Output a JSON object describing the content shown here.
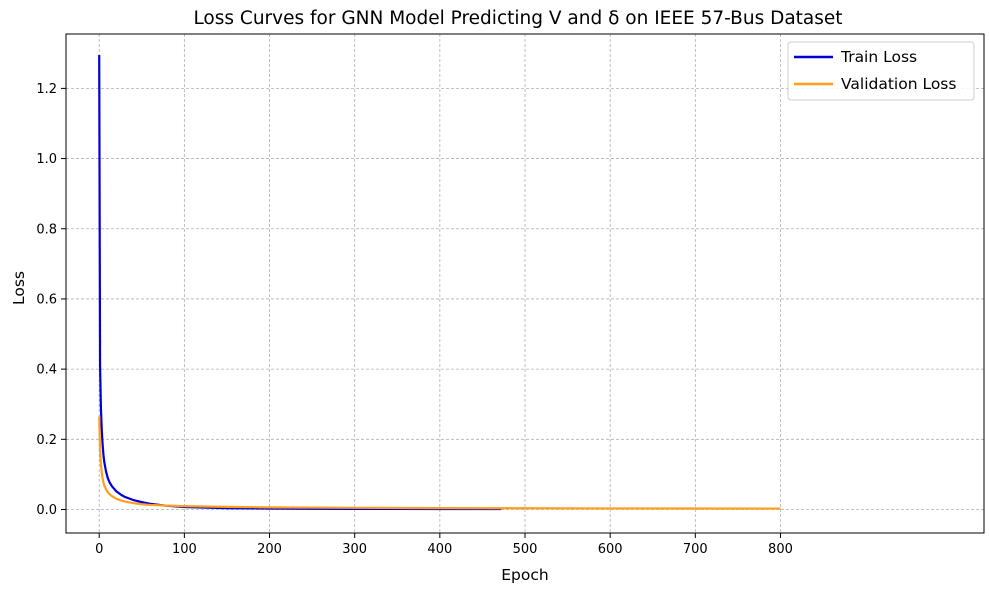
{
  "chart_data": {
    "type": "line",
    "title": "Loss Curves for GNN Model Predicting V and δ on IEEE 57-Bus Dataset",
    "xlabel": "Epoch",
    "ylabel": "Loss",
    "xlim": [
      -39,
      1039
    ],
    "ylim": [
      -0.067,
      1.355
    ],
    "xticks": [
      0,
      100,
      200,
      300,
      400,
      500,
      600,
      700,
      800
    ],
    "yticks": [
      0.0,
      0.2,
      0.4,
      0.6,
      0.8,
      1.0,
      1.2
    ],
    "xtick_labels": [
      "0",
      "100",
      "200",
      "300",
      "400",
      "500",
      "600",
      "700",
      "800"
    ],
    "ytick_labels": [
      "0.0",
      "0.2",
      "0.4",
      "0.6",
      "0.8",
      "1.0",
      "1.2"
    ],
    "grid": true,
    "legend_position": "top-right",
    "series": [
      {
        "name": "Train Loss",
        "color": "#0000dd",
        "x": [
          0,
          1,
          2,
          3,
          4,
          5,
          6,
          8,
          10,
          12,
          15,
          20,
          25,
          30,
          40,
          50,
          60,
          80,
          100,
          150,
          200,
          250,
          300,
          350,
          400,
          450,
          472
        ],
        "y": [
          1.295,
          0.41,
          0.29,
          0.225,
          0.185,
          0.155,
          0.135,
          0.108,
          0.09,
          0.078,
          0.066,
          0.052,
          0.043,
          0.036,
          0.027,
          0.021,
          0.016,
          0.0105,
          0.007,
          0.004,
          0.0028,
          0.0022,
          0.0018,
          0.0016,
          0.0014,
          0.0012,
          0.0012
        ]
      },
      {
        "name": "Validation Loss",
        "color": "#ff9f1c",
        "x": [
          0,
          1,
          2,
          3,
          4,
          5,
          6,
          8,
          10,
          12,
          15,
          20,
          25,
          30,
          40,
          50,
          60,
          80,
          100,
          150,
          200,
          300,
          400,
          500,
          600,
          700,
          800
        ],
        "y": [
          0.265,
          0.17,
          0.13,
          0.105,
          0.088,
          0.077,
          0.068,
          0.057,
          0.049,
          0.044,
          0.038,
          0.031,
          0.026,
          0.023,
          0.018,
          0.015,
          0.013,
          0.011,
          0.0095,
          0.0075,
          0.006,
          0.0048,
          0.004,
          0.0035,
          0.003,
          0.0028,
          0.0026
        ]
      }
    ]
  }
}
